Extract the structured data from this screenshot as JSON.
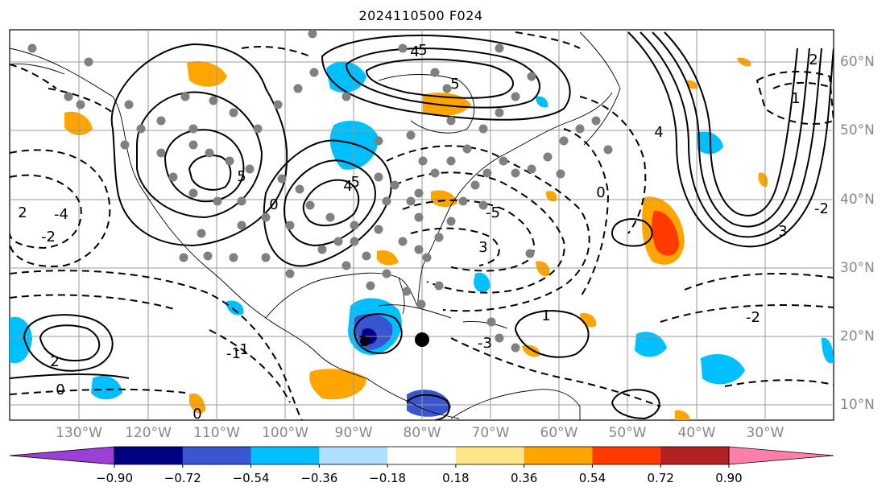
{
  "title": "2024110500 F024",
  "lon_labels": [
    "130°W",
    "120°W",
    "110°W",
    "100°W",
    "90°W",
    "80°W",
    "70°W",
    "60°W",
    "50°W",
    "40°W",
    "30°W"
  ],
  "lat_labels": [
    "60°N",
    "50°N",
    "40°N",
    "30°N",
    "20°N",
    "10°N"
  ],
  "colorbar": {
    "tick_labels": [
      "−0.90",
      "−0.72",
      "−0.54",
      "−0.36",
      "−0.18",
      "0.18",
      "0.36",
      "0.54",
      "0.72",
      "0.90"
    ],
    "colors": [
      "#9b3fd6",
      "#000080",
      "#3a55d0",
      "#00bfff",
      "#aee0fb",
      "#ffffff",
      "#ffe68a",
      "#ffa500",
      "#ff3a00",
      "#b22222",
      "#ff7faa"
    ]
  },
  "contour_labels": [
    "5",
    "5",
    "5",
    "4",
    "4",
    "3",
    "3",
    "2",
    "2",
    "2",
    "1",
    "1",
    "0",
    "0",
    "0",
    "-1",
    "-1",
    "-2",
    "-2",
    "-2",
    "-3",
    "-4",
    "-5",
    "-5",
    "4",
    "3",
    "0"
  ],
  "colors": {
    "land_line": "#000000",
    "grid": "#999999",
    "station": "#808080",
    "center_marker": "#000000"
  }
}
